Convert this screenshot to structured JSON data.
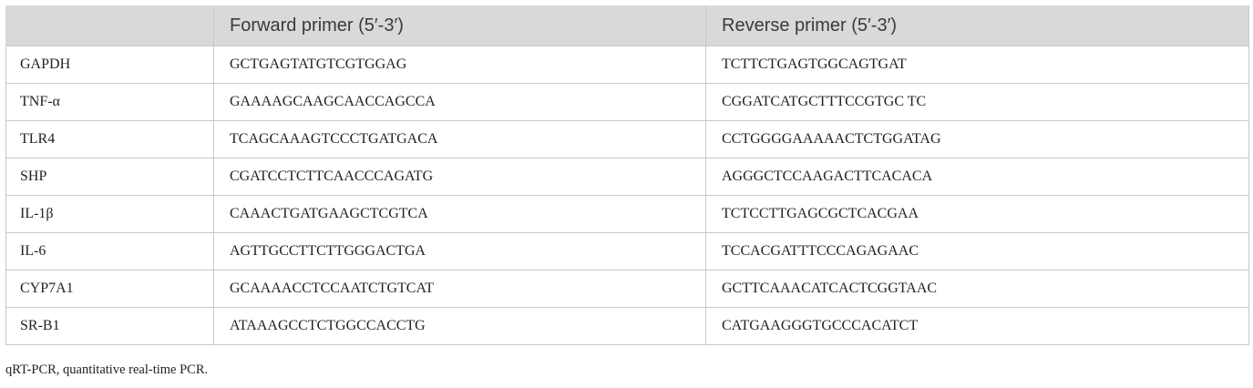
{
  "table": {
    "headers": [
      "",
      "Forward primer (5′-3′)",
      "Reverse primer (5′-3′)"
    ],
    "rows": [
      [
        "GAPDH",
        "GCTGAGTATGTCGTGGAG",
        "TCTTCTGAGTGGCAGTGAT"
      ],
      [
        "TNF-α",
        "GAAAAGCAAGCAACCAGCCA",
        "CGGATCATGCTTTCCGTGC TC"
      ],
      [
        "TLR4",
        "TCAGCAAAGTCCCTGATGACA",
        "CCTGGGGAAAAACTCTGGATAG"
      ],
      [
        "SHP",
        "CGATCCTCTTCAACCCAGATG",
        "AGGGCTCCAAGACTTCACACA"
      ],
      [
        "IL-1β",
        "CAAACTGATGAAGCTCGTCA",
        "TCTCCTTGAGCGCTCACGAA"
      ],
      [
        "IL-6",
        "AGTTGCCTTCTTGGGACTGA",
        "TCCACGATTTCCCAGAGAAC"
      ],
      [
        "CYP7A1",
        "GCAAAACCTCCAATCTGTCAT",
        "GCTTCAAACATCACTCGGTAAC"
      ],
      [
        "SR-B1",
        "ATAAAGCCTCTGGCCACCTG",
        "CATGAAGGGTGCCCACATCT"
      ]
    ]
  },
  "footnote": "qRT-PCR, quantitative real-time PCR."
}
